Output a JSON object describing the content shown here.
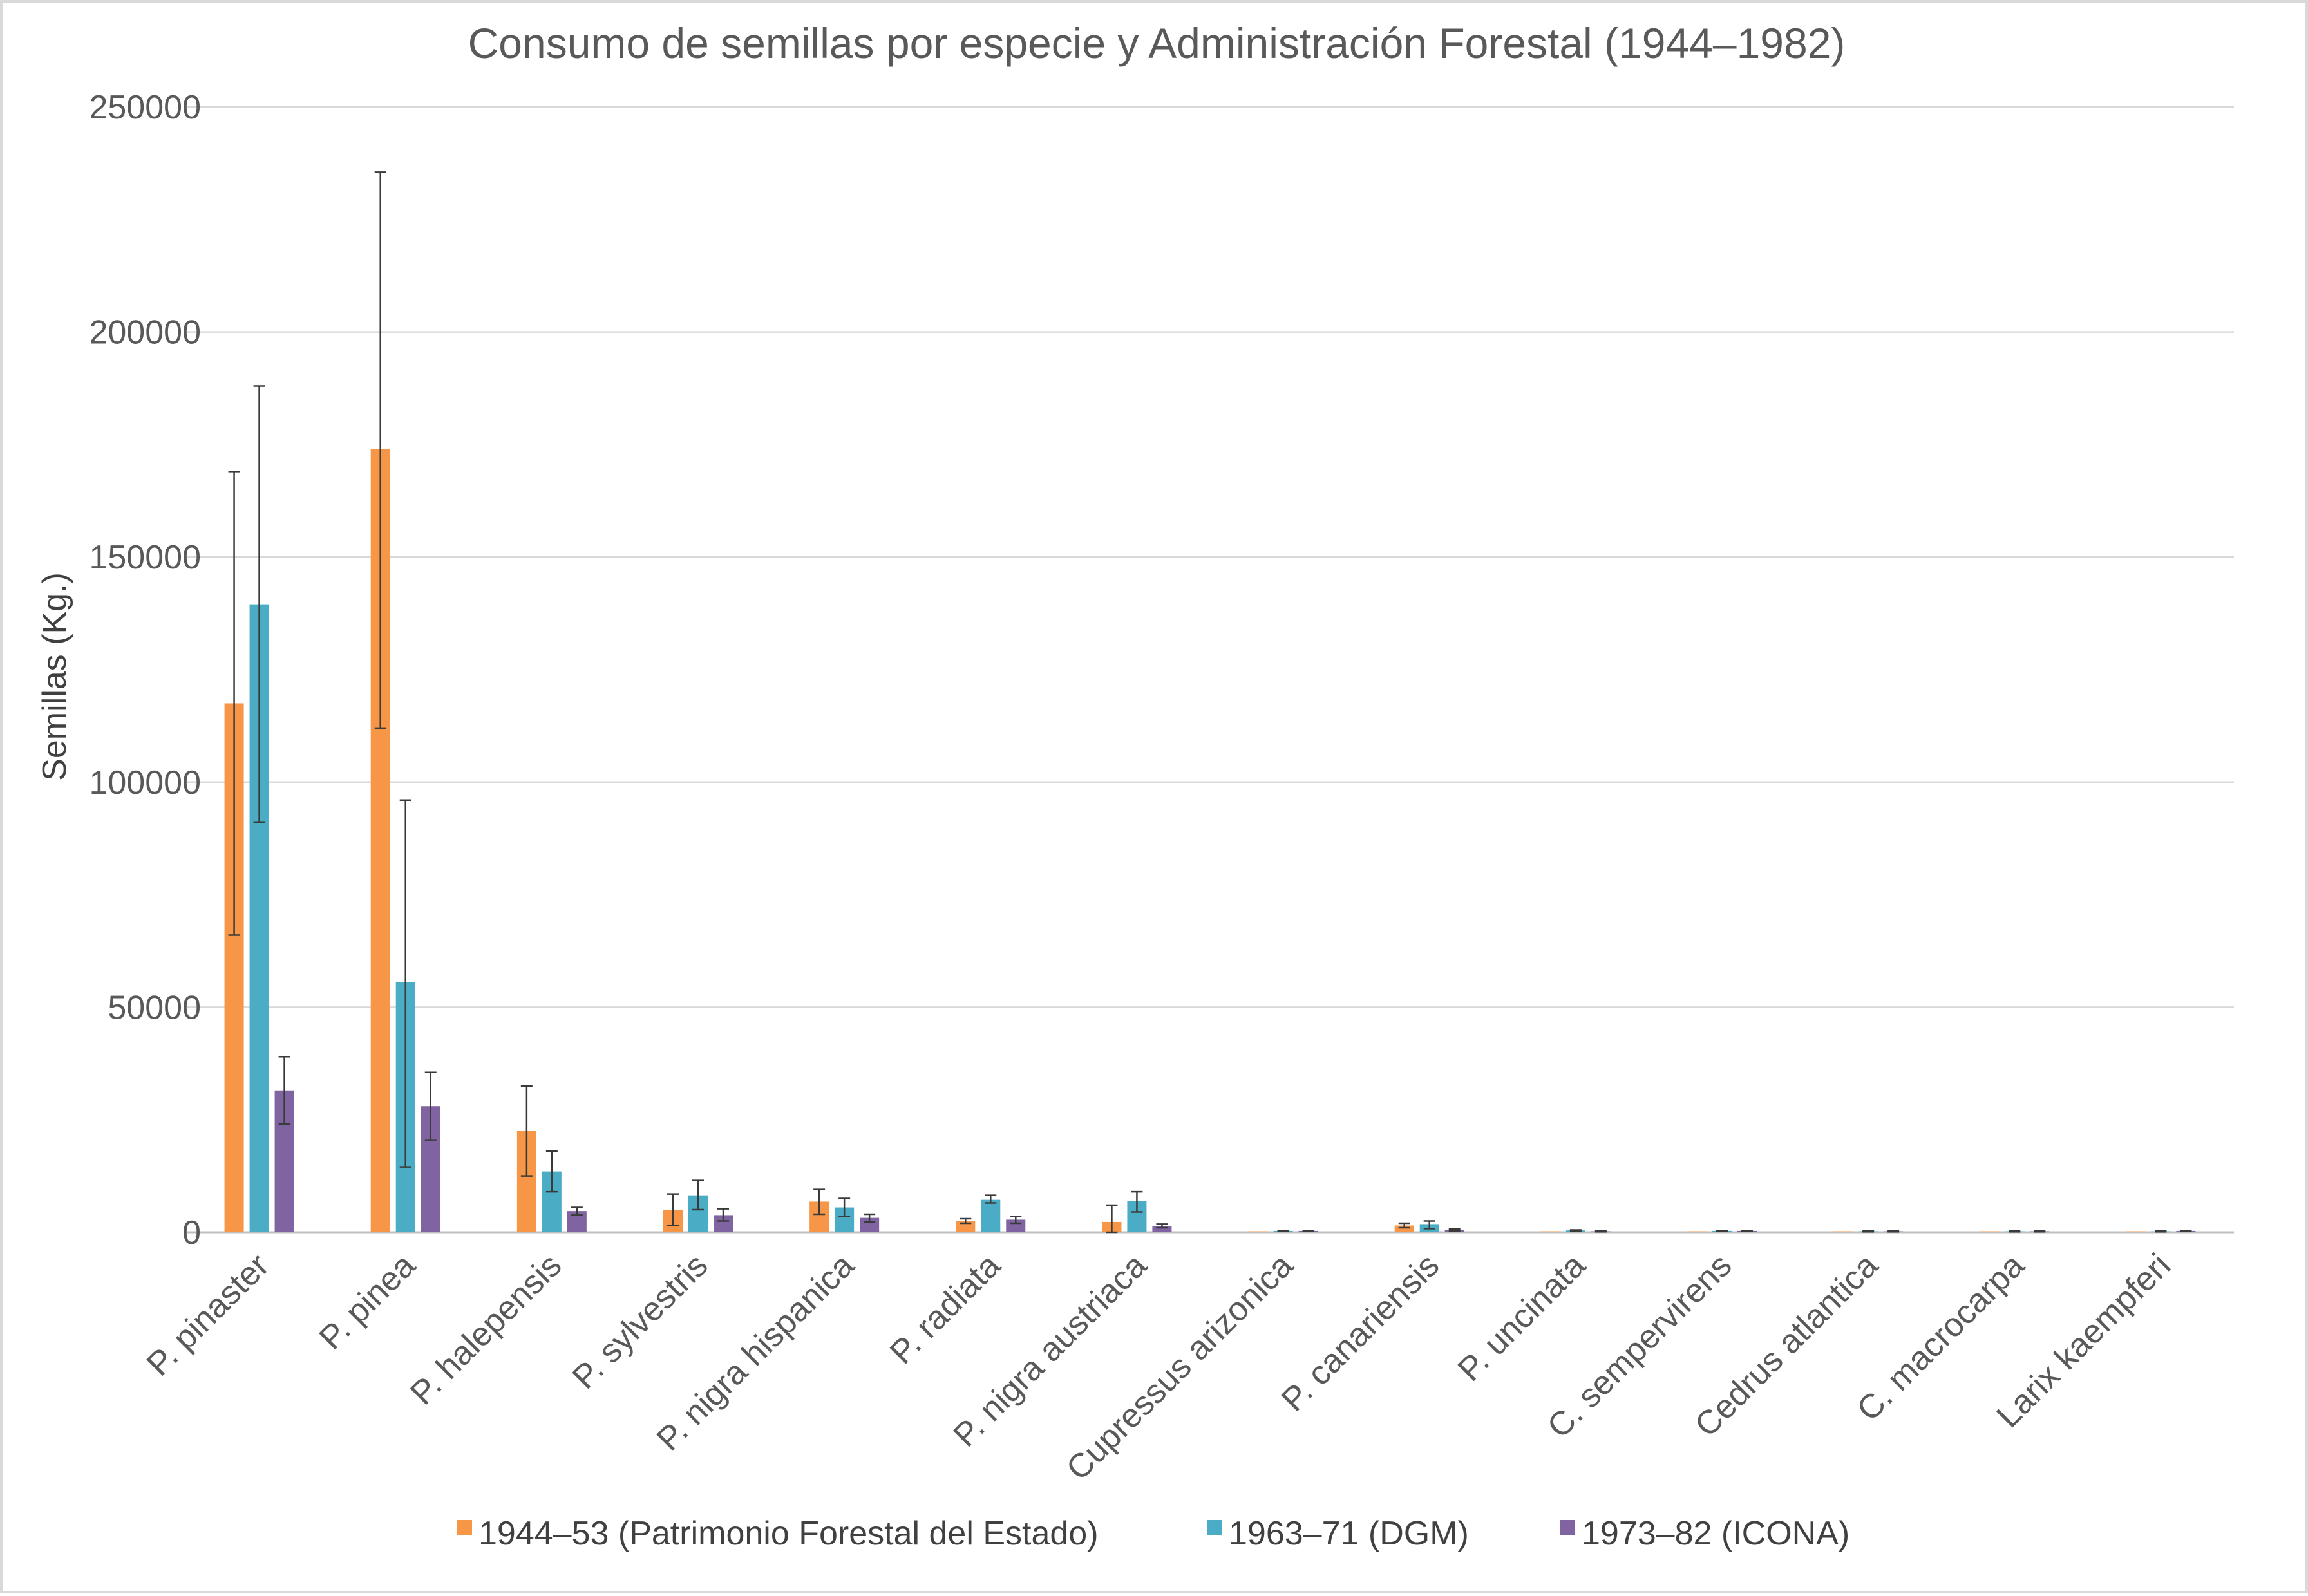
{
  "chart_data": {
    "type": "bar",
    "title": "Consumo de semillas por especie y Administración Forestal (1944–1982)",
    "ylabel": "Semillas (Kg.)",
    "xlabel": "",
    "ylim": [
      0,
      250000
    ],
    "yticks": [
      0,
      50000,
      100000,
      150000,
      200000,
      250000
    ],
    "grid": true,
    "legend_position": "bottom",
    "categories": [
      "P. pinaster",
      "P. pinea",
      "P. halepensis",
      "P. sylvestris",
      "P. nigra hispanica",
      "P. radiata",
      "P. nigra austriaca",
      "Cupressus arizonica",
      "P. canariensis",
      "P. uncinata",
      "C. sempervirens",
      "Cedrus atlantica",
      "C. macrocarpa",
      "Larix kaempferi"
    ],
    "series": [
      {
        "name": "1944–53 (Patrimonio Forestal del Estado)",
        "color": "#F79646",
        "values": [
          117500,
          174000,
          22500,
          5000,
          6800,
          2500,
          2300,
          100,
          1500,
          100,
          100,
          100,
          100,
          100
        ],
        "err_low": [
          66000,
          112000,
          12500,
          1500,
          4000,
          2000,
          0,
          0,
          1000,
          0,
          0,
          0,
          0,
          0
        ],
        "err_high": [
          169000,
          235500,
          32500,
          8500,
          9500,
          3000,
          6000,
          0,
          2000,
          0,
          0,
          0,
          0,
          0
        ]
      },
      {
        "name": "1963–71 (DGM)",
        "color": "#4BACC6",
        "values": [
          139500,
          55500,
          13500,
          8200,
          5500,
          7200,
          7000,
          300,
          1800,
          400,
          300,
          200,
          200,
          200
        ],
        "err_low": [
          91000,
          14500,
          9000,
          5000,
          3500,
          6500,
          4500,
          200,
          800,
          300,
          200,
          100,
          100,
          100
        ],
        "err_high": [
          188000,
          96000,
          18000,
          11500,
          7500,
          8200,
          9000,
          400,
          2500,
          500,
          400,
          300,
          300,
          300
        ]
      },
      {
        "name": "1973–82 (ICONA)",
        "color": "#8064A2",
        "values": [
          31500,
          28000,
          4700,
          3800,
          3200,
          2800,
          1400,
          300,
          500,
          200,
          300,
          200,
          200,
          300
        ],
        "err_low": [
          24000,
          20500,
          3800,
          2500,
          2300,
          2000,
          1000,
          200,
          300,
          100,
          200,
          100,
          100,
          200
        ],
        "err_high": [
          39000,
          35500,
          5500,
          5200,
          4000,
          3500,
          1800,
          400,
          700,
          300,
          400,
          300,
          300,
          400
        ]
      }
    ]
  }
}
